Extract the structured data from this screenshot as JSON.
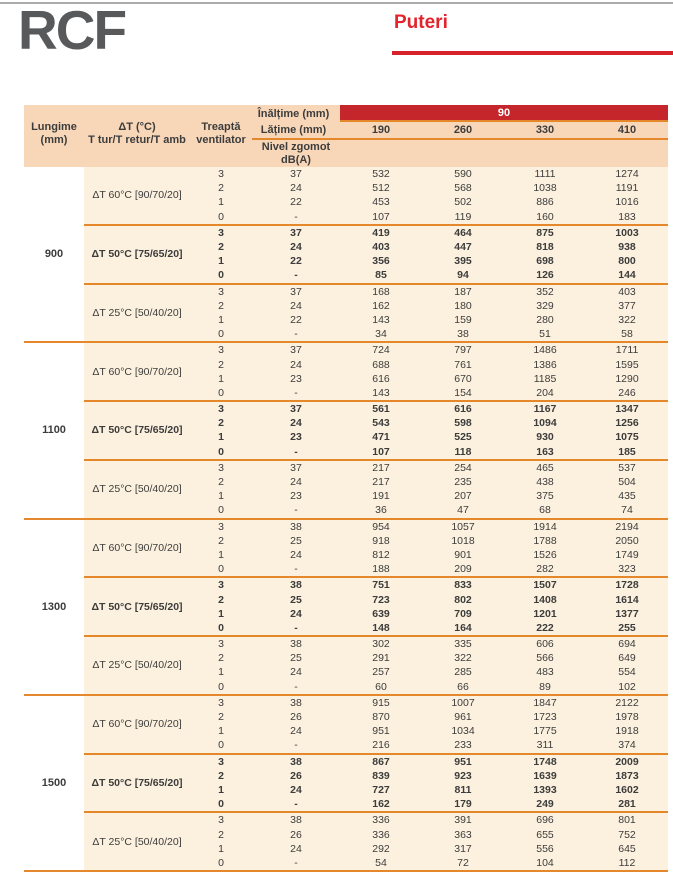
{
  "page": {
    "logo": "RCF",
    "title": "Puteri"
  },
  "colors": {
    "banner_red": "#c5262c",
    "title_red": "#e2242c",
    "rule_orange": "#e5872b",
    "header_peach": "#f8d7b9",
    "body_cream": "#fcf1de",
    "logo_gray": "#58595b"
  },
  "table": {
    "header": {
      "inaltime_label": "Înălțime (mm)",
      "height_value": "90",
      "latime_label": "Lățime (mm)",
      "widths": [
        "190",
        "260",
        "330",
        "410"
      ],
      "lungime_line1": "Lungime",
      "lungime_line2": "(mm)",
      "dt_line1": "ΔT (°C)",
      "dt_line2": "T tur/T retur/T amb",
      "treapta_line1": "Treaptă",
      "treapta_line2": "ventilator",
      "nivel_line1": "Nivel zgomot",
      "nivel_line2": "dB(A)"
    },
    "groups": [
      {
        "length": "900",
        "subgroups": [
          {
            "label": "ΔT 60°C [90/70/20]",
            "bold": false,
            "rows": [
              {
                "treapta": "3",
                "zgomot": "37",
                "values": [
                  "532",
                  "590",
                  "1111",
                  "1274"
                ]
              },
              {
                "treapta": "2",
                "zgomot": "24",
                "values": [
                  "512",
                  "568",
                  "1038",
                  "1191"
                ]
              },
              {
                "treapta": "1",
                "zgomot": "22",
                "values": [
                  "453",
                  "502",
                  "886",
                  "1016"
                ]
              },
              {
                "treapta": "0",
                "zgomot": "-",
                "values": [
                  "107",
                  "119",
                  "160",
                  "183"
                ]
              }
            ]
          },
          {
            "label": "ΔT 50°C [75/65/20]",
            "bold": true,
            "rows": [
              {
                "treapta": "3",
                "zgomot": "37",
                "values": [
                  "419",
                  "464",
                  "875",
                  "1003"
                ]
              },
              {
                "treapta": "2",
                "zgomot": "24",
                "values": [
                  "403",
                  "447",
                  "818",
                  "938"
                ]
              },
              {
                "treapta": "1",
                "zgomot": "22",
                "values": [
                  "356",
                  "395",
                  "698",
                  "800"
                ]
              },
              {
                "treapta": "0",
                "zgomot": "-",
                "values": [
                  "85",
                  "94",
                  "126",
                  "144"
                ]
              }
            ]
          },
          {
            "label": "ΔT 25°C [50/40/20]",
            "bold": false,
            "rows": [
              {
                "treapta": "3",
                "zgomot": "37",
                "values": [
                  "168",
                  "187",
                  "352",
                  "403"
                ]
              },
              {
                "treapta": "2",
                "zgomot": "24",
                "values": [
                  "162",
                  "180",
                  "329",
                  "377"
                ]
              },
              {
                "treapta": "1",
                "zgomot": "22",
                "values": [
                  "143",
                  "159",
                  "280",
                  "322"
                ]
              },
              {
                "treapta": "0",
                "zgomot": "-",
                "values": [
                  "34",
                  "38",
                  "51",
                  "58"
                ]
              }
            ]
          }
        ]
      },
      {
        "length": "1100",
        "subgroups": [
          {
            "label": "ΔT 60°C [90/70/20]",
            "bold": false,
            "rows": [
              {
                "treapta": "3",
                "zgomot": "37",
                "values": [
                  "724",
                  "797",
                  "1486",
                  "1711"
                ]
              },
              {
                "treapta": "2",
                "zgomot": "24",
                "values": [
                  "688",
                  "761",
                  "1386",
                  "1595"
                ]
              },
              {
                "treapta": "1",
                "zgomot": "23",
                "values": [
                  "616",
                  "670",
                  "1185",
                  "1290"
                ]
              },
              {
                "treapta": "0",
                "zgomot": "-",
                "values": [
                  "143",
                  "154",
                  "204",
                  "246"
                ]
              }
            ]
          },
          {
            "label": "ΔT 50°C [75/65/20]",
            "bold": true,
            "rows": [
              {
                "treapta": "3",
                "zgomot": "37",
                "values": [
                  "561",
                  "616",
                  "1167",
                  "1347"
                ]
              },
              {
                "treapta": "2",
                "zgomot": "24",
                "values": [
                  "543",
                  "598",
                  "1094",
                  "1256"
                ]
              },
              {
                "treapta": "1",
                "zgomot": "23",
                "values": [
                  "471",
                  "525",
                  "930",
                  "1075"
                ]
              },
              {
                "treapta": "0",
                "zgomot": "-",
                "values": [
                  "107",
                  "118",
                  "163",
                  "185"
                ]
              }
            ]
          },
          {
            "label": "ΔT 25°C [50/40/20]",
            "bold": false,
            "rows": [
              {
                "treapta": "3",
                "zgomot": "37",
                "values": [
                  "217",
                  "254",
                  "465",
                  "537"
                ]
              },
              {
                "treapta": "2",
                "zgomot": "24",
                "values": [
                  "217",
                  "235",
                  "438",
                  "504"
                ]
              },
              {
                "treapta": "1",
                "zgomot": "23",
                "values": [
                  "191",
                  "207",
                  "375",
                  "435"
                ]
              },
              {
                "treapta": "0",
                "zgomot": "-",
                "values": [
                  "36",
                  "47",
                  "68",
                  "74"
                ]
              }
            ]
          }
        ]
      },
      {
        "length": "1300",
        "subgroups": [
          {
            "label": "ΔT 60°C [90/70/20]",
            "bold": false,
            "rows": [
              {
                "treapta": "3",
                "zgomot": "38",
                "values": [
                  "954",
                  "1057",
                  "1914",
                  "2194"
                ]
              },
              {
                "treapta": "2",
                "zgomot": "25",
                "values": [
                  "918",
                  "1018",
                  "1788",
                  "2050"
                ]
              },
              {
                "treapta": "1",
                "zgomot": "24",
                "values": [
                  "812",
                  "901",
                  "1526",
                  "1749"
                ]
              },
              {
                "treapta": "0",
                "zgomot": "-",
                "values": [
                  "188",
                  "209",
                  "282",
                  "323"
                ]
              }
            ]
          },
          {
            "label": "ΔT 50°C [75/65/20]",
            "bold": true,
            "rows": [
              {
                "treapta": "3",
                "zgomot": "38",
                "values": [
                  "751",
                  "833",
                  "1507",
                  "1728"
                ]
              },
              {
                "treapta": "2",
                "zgomot": "25",
                "values": [
                  "723",
                  "802",
                  "1408",
                  "1614"
                ]
              },
              {
                "treapta": "1",
                "zgomot": "24",
                "values": [
                  "639",
                  "709",
                  "1201",
                  "1377"
                ]
              },
              {
                "treapta": "0",
                "zgomot": "-",
                "values": [
                  "148",
                  "164",
                  "222",
                  "255"
                ]
              }
            ]
          },
          {
            "label": "ΔT 25°C [50/40/20]",
            "bold": false,
            "rows": [
              {
                "treapta": "3",
                "zgomot": "38",
                "values": [
                  "302",
                  "335",
                  "606",
                  "694"
                ]
              },
              {
                "treapta": "2",
                "zgomot": "25",
                "values": [
                  "291",
                  "322",
                  "566",
                  "649"
                ]
              },
              {
                "treapta": "1",
                "zgomot": "24",
                "values": [
                  "257",
                  "285",
                  "483",
                  "554"
                ]
              },
              {
                "treapta": "0",
                "zgomot": "-",
                "values": [
                  "60",
                  "66",
                  "89",
                  "102"
                ]
              }
            ]
          }
        ]
      },
      {
        "length": "1500",
        "subgroups": [
          {
            "label": "ΔT 60°C [90/70/20]",
            "bold": false,
            "rows": [
              {
                "treapta": "3",
                "zgomot": "38",
                "values": [
                  "915",
                  "1007",
                  "1847",
                  "2122"
                ]
              },
              {
                "treapta": "2",
                "zgomot": "26",
                "values": [
                  "870",
                  "961",
                  "1723",
                  "1978"
                ]
              },
              {
                "treapta": "1",
                "zgomot": "24",
                "values": [
                  "951",
                  "1034",
                  "1775",
                  "1918"
                ]
              },
              {
                "treapta": "0",
                "zgomot": "-",
                "values": [
                  "216",
                  "233",
                  "311",
                  "374"
                ]
              }
            ]
          },
          {
            "label": "ΔT 50°C [75/65/20]",
            "bold": true,
            "rows": [
              {
                "treapta": "3",
                "zgomot": "38",
                "values": [
                  "867",
                  "951",
                  "1748",
                  "2009"
                ]
              },
              {
                "treapta": "2",
                "zgomot": "26",
                "values": [
                  "839",
                  "923",
                  "1639",
                  "1873"
                ]
              },
              {
                "treapta": "1",
                "zgomot": "24",
                "values": [
                  "727",
                  "811",
                  "1393",
                  "1602"
                ]
              },
              {
                "treapta": "0",
                "zgomot": "-",
                "values": [
                  "162",
                  "179",
                  "249",
                  "281"
                ]
              }
            ]
          },
          {
            "label": "ΔT 25°C [50/40/20]",
            "bold": false,
            "rows": [
              {
                "treapta": "3",
                "zgomot": "38",
                "values": [
                  "336",
                  "391",
                  "696",
                  "801"
                ]
              },
              {
                "treapta": "2",
                "zgomot": "26",
                "values": [
                  "336",
                  "363",
                  "655",
                  "752"
                ]
              },
              {
                "treapta": "1",
                "zgomot": "24",
                "values": [
                  "292",
                  "317",
                  "556",
                  "645"
                ]
              },
              {
                "treapta": "0",
                "zgomot": "-",
                "values": [
                  "54",
                  "72",
                  "104",
                  "112"
                ]
              }
            ]
          }
        ]
      }
    ]
  }
}
